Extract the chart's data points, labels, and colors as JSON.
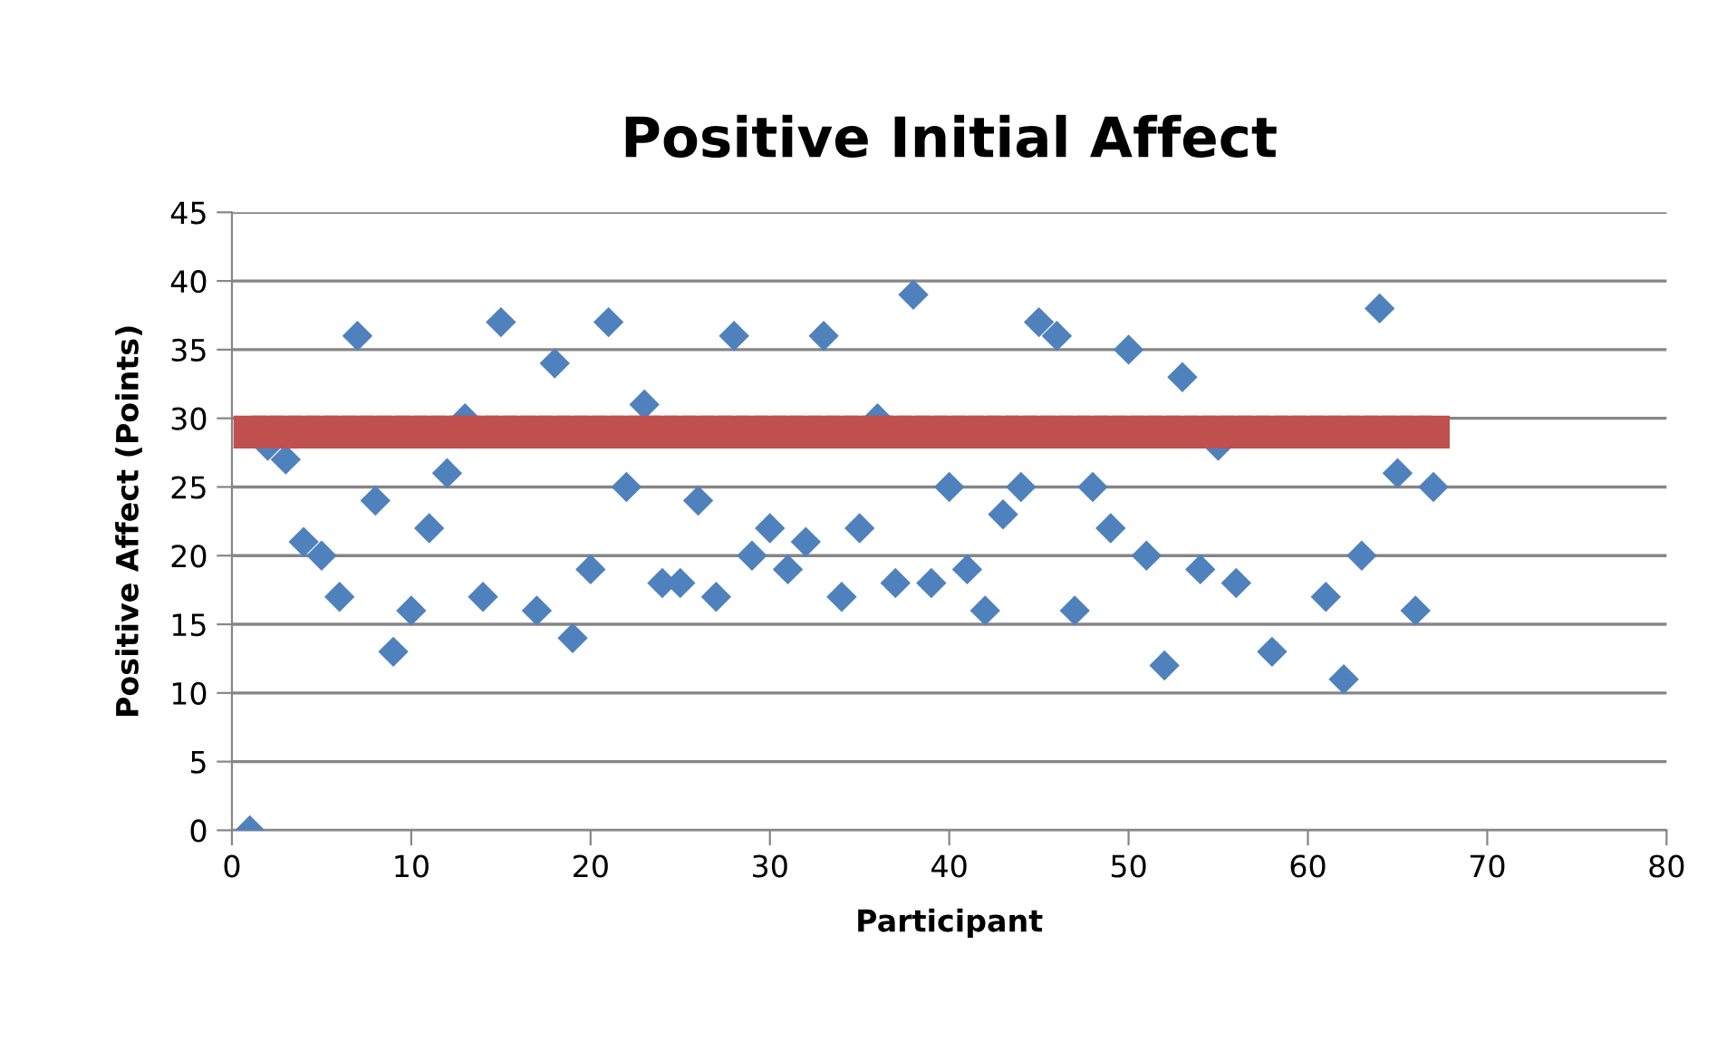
{
  "chart_data": {
    "type": "scatter",
    "title": "Positive Initial Affect",
    "xlabel": "Participant",
    "ylabel": "Positive Affect (Points)",
    "xlim": [
      0,
      80
    ],
    "xticks": [
      0,
      10,
      20,
      30,
      40,
      50,
      60,
      70,
      80
    ],
    "ylim": [
      0,
      45
    ],
    "yticks": [
      0,
      5,
      10,
      15,
      20,
      25,
      30,
      35,
      40,
      45
    ],
    "grid": "y",
    "series": [
      {
        "marker": "diamond",
        "color": "#4f81bd",
        "x": [
          1,
          2,
          3,
          4,
          5,
          6,
          7,
          8,
          9,
          10,
          11,
          12,
          13,
          14,
          15,
          16,
          17,
          18,
          19,
          20,
          21,
          22,
          23,
          24,
          25,
          26,
          27,
          28,
          29,
          30,
          31,
          32,
          33,
          34,
          35,
          36,
          37,
          38,
          39,
          40,
          41,
          42,
          43,
          44,
          45,
          46,
          47,
          48,
          49,
          50,
          51,
          52,
          53,
          54,
          55,
          56,
          57,
          58,
          59,
          60,
          61,
          62,
          63,
          64,
          65,
          66,
          67
        ],
        "values": [
          0,
          28,
          27,
          21,
          20,
          17,
          36,
          24,
          13,
          16,
          22,
          26,
          30,
          17,
          37,
          null,
          16,
          34,
          14,
          19,
          37,
          25,
          31,
          18,
          18,
          24,
          17,
          36,
          20,
          22,
          19,
          21,
          36,
          17,
          22,
          30,
          18,
          39,
          18,
          25,
          19,
          16,
          23,
          25,
          37,
          36,
          16,
          25,
          22,
          35,
          20,
          12,
          33,
          19,
          28,
          18,
          null,
          13,
          null,
          null,
          17,
          11,
          20,
          38,
          26,
          16,
          25
        ]
      },
      {
        "marker": "square",
        "color": "#c0504d",
        "x": [
          1,
          2,
          3,
          4,
          5,
          6,
          7,
          8,
          9,
          10,
          11,
          12,
          13,
          14,
          15,
          16,
          17,
          18,
          19,
          20,
          21,
          22,
          23,
          24,
          25,
          26,
          27,
          28,
          29,
          30,
          31,
          32,
          33,
          34,
          35,
          36,
          37,
          38,
          39,
          40,
          41,
          42,
          43,
          44,
          45,
          46,
          47,
          48,
          49,
          50,
          51,
          52,
          53,
          54,
          55,
          56,
          57,
          58,
          59,
          60,
          61,
          62,
          63,
          64,
          65,
          66,
          67
        ],
        "values": [
          29,
          29,
          29,
          29,
          29,
          29,
          29,
          29,
          29,
          29,
          29,
          29,
          29,
          29,
          29,
          29,
          29,
          29,
          29,
          29,
          29,
          29,
          29,
          29,
          29,
          29,
          29,
          29,
          29,
          29,
          29,
          29,
          29,
          29,
          29,
          29,
          29,
          29,
          29,
          29,
          29,
          29,
          29,
          29,
          29,
          29,
          29,
          29,
          29,
          29,
          29,
          29,
          29,
          29,
          29,
          29,
          29,
          29,
          29,
          29,
          29,
          29,
          29,
          29,
          29,
          29,
          29
        ]
      }
    ]
  }
}
